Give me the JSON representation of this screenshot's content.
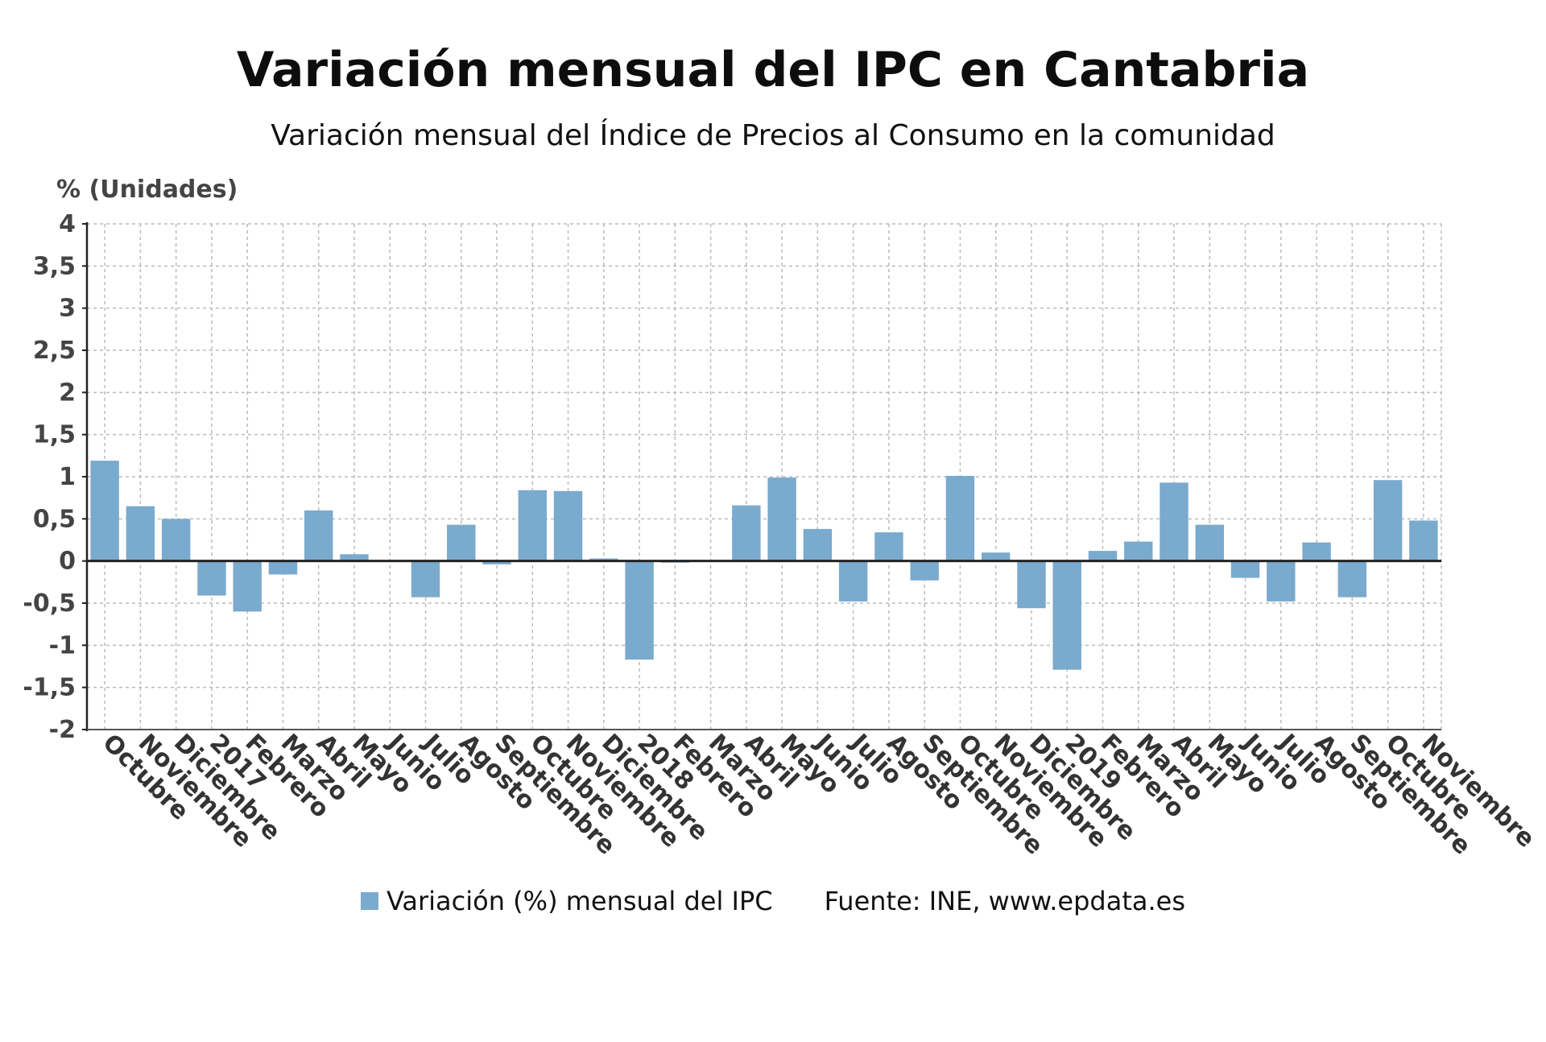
{
  "title": "Variación mensual del IPC en Cantabria",
  "subtitle": "Variación mensual del Índice de Precios al Consumo en la comunidad",
  "legend": {
    "series_label": "Variación (%) mensual del IPC",
    "source": "Fuente: INE, www.epdata.es",
    "swatch_color": "#7aaacd"
  },
  "chart_data": {
    "type": "bar",
    "title": "Variación mensual del IPC en Cantabria",
    "subtitle": "Variación mensual del Índice de Precios al Consumo en la comunidad",
    "ylabel": "% (Unidades)",
    "xlabel": "",
    "ylim": [
      -2,
      4
    ],
    "yticks": [
      "-2",
      "-1,5",
      "-1",
      "-0,5",
      "0",
      "0,5",
      "1",
      "1,5",
      "2",
      "2,5",
      "3",
      "3,5",
      "4"
    ],
    "grid": true,
    "legend_position": "bottom",
    "colors": {
      "bar": "#7aaacd",
      "zero_line": "#222222",
      "grid": "#bbbbbb"
    },
    "categories": [
      "Octubre",
      "Noviembre",
      "Diciembre",
      "2017",
      "Febrero",
      "Marzo",
      "Abril",
      "Mayo",
      "Junio",
      "Julio",
      "Agosto",
      "Septiembre",
      "Octubre",
      "Noviembre",
      "Diciembre",
      "2018",
      "Febrero",
      "Marzo",
      "Abril",
      "Mayo",
      "Junio",
      "Julio",
      "Agosto",
      "Septiembre",
      "Octubre",
      "Noviembre",
      "Diciembre",
      "2019",
      "Febrero",
      "Marzo",
      "Abril",
      "Mayo",
      "Junio",
      "Julio",
      "Agosto",
      "Septiembre",
      "Octubre",
      "Noviembre"
    ],
    "series": [
      {
        "name": "Variación (%) mensual del IPC",
        "values": [
          1.19,
          0.65,
          0.5,
          -0.41,
          -0.6,
          -0.16,
          0.6,
          0.08,
          0.0,
          -0.43,
          0.43,
          -0.04,
          0.84,
          0.83,
          0.03,
          -1.17,
          -0.02,
          0.01,
          0.66,
          0.99,
          0.38,
          -0.48,
          0.34,
          -0.23,
          1.01,
          0.1,
          -0.56,
          -1.29,
          0.12,
          0.23,
          0.93,
          0.43,
          -0.2,
          -0.48,
          0.22,
          -0.43,
          0.96,
          0.48
        ]
      }
    ]
  }
}
